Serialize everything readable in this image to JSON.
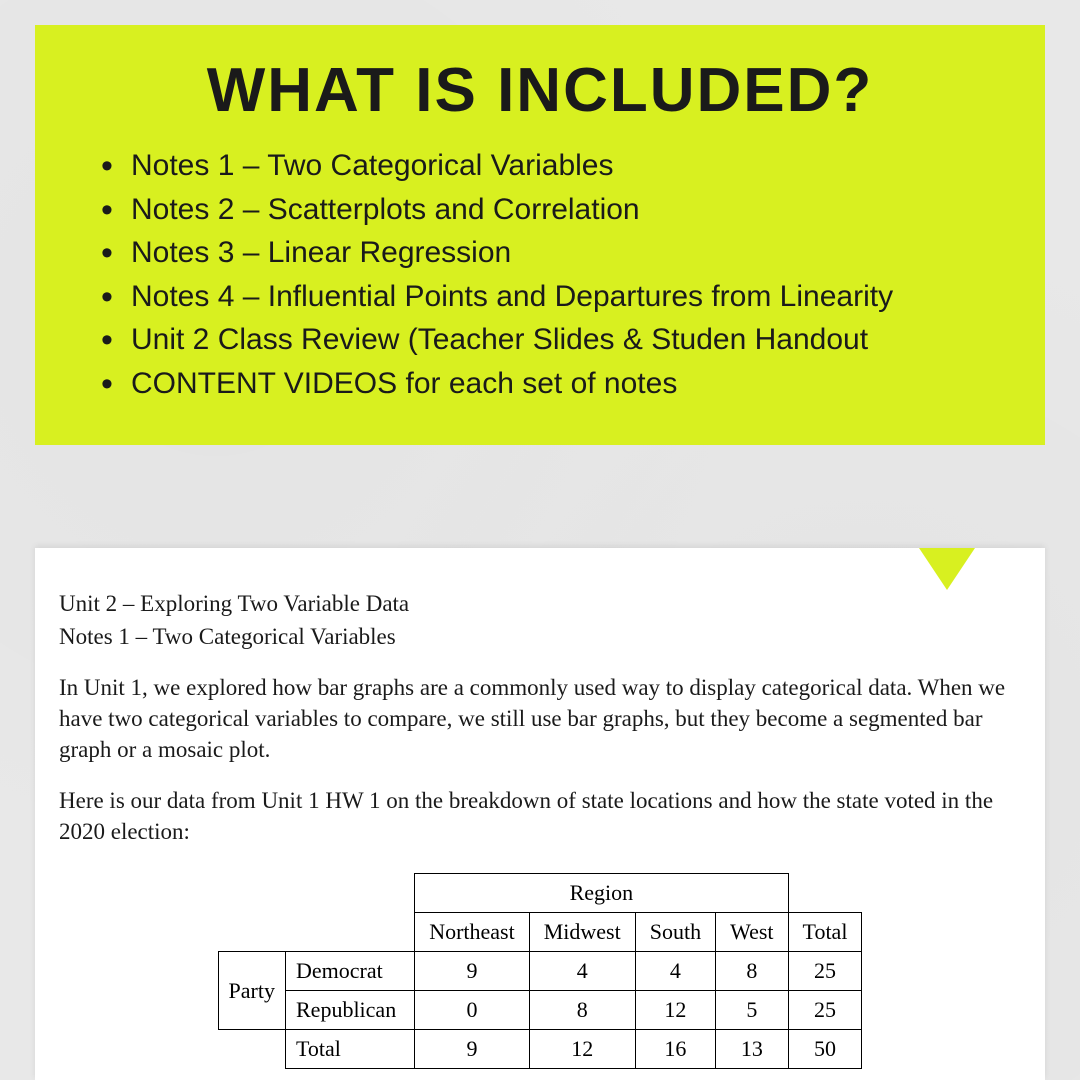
{
  "banner": {
    "title": "WHAT IS INCLUDED?",
    "bg_color": "#d8f020",
    "title_color": "#1a1a1a",
    "title_fontsize": 62,
    "item_fontsize": 30,
    "items": [
      "Notes 1 – Two Categorical Variables",
      "Notes 2 – Scatterplots and Correlation",
      "Notes 3 – Linear Regression",
      "Notes 4 – Influential Points and Departures from Linearity",
      "Unit 2 Class Review (Teacher Slides & Studen Handout",
      "CONTENT VIDEOS for each set of notes"
    ]
  },
  "doc": {
    "bg_color": "#ffffff",
    "text_color": "#1a1a1a",
    "heading1": "Unit 2 – Exploring Two Variable Data",
    "heading2": "Notes 1 – Two Categorical Variables",
    "para1": "In Unit 1, we explored how bar graphs are a commonly used way to display categorical data. When we have two categorical variables to compare, we still use bar graphs, but they become a segmented bar graph or a mosaic plot.",
    "para2": "Here is our data from Unit 1 HW 1 on the breakdown of state locations and how the state voted in the 2020 election:",
    "table": {
      "type": "table",
      "border_color": "#000000",
      "font_family": "Times New Roman",
      "col_group_label": "Region",
      "row_group_label": "Party",
      "columns": [
        "Northeast",
        "Midwest",
        "South",
        "West",
        "Total"
      ],
      "rows": [
        {
          "label": "Democrat",
          "values": [
            9,
            4,
            4,
            8,
            25
          ]
        },
        {
          "label": "Republican",
          "values": [
            0,
            8,
            12,
            5,
            25
          ]
        },
        {
          "label": "Total",
          "values": [
            9,
            12,
            16,
            13,
            50
          ]
        }
      ]
    }
  },
  "page_bg": "#e8e8e8"
}
